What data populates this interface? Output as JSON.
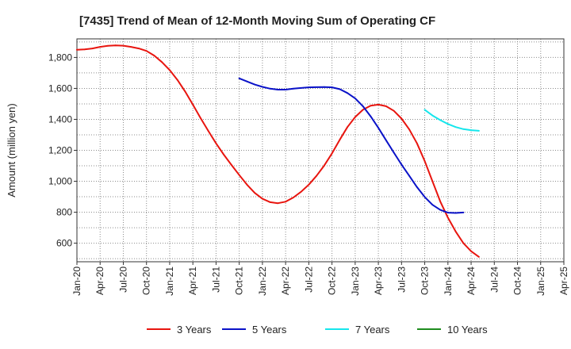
{
  "chart_data": {
    "type": "line",
    "title": "[7435]  Trend of Mean of 12-Month Moving Sum of Operating CF",
    "xlabel": "",
    "ylabel": "Amount (million yen)",
    "ylim": [
      480,
      1920
    ],
    "yticks": [
      600,
      800,
      1000,
      1200,
      1400,
      1600,
      1800
    ],
    "ytick_labels": [
      "600",
      "800",
      "1,000",
      "1,200",
      "1,400",
      "1,600",
      "1,800"
    ],
    "xlim": [
      "Jan-20",
      "Apr-25"
    ],
    "xtick_labels": [
      "Jan-20",
      "Apr-20",
      "Jul-20",
      "Oct-20",
      "Jan-21",
      "Apr-21",
      "Jul-21",
      "Oct-21",
      "Jan-22",
      "Apr-22",
      "Jul-22",
      "Oct-22",
      "Jan-23",
      "Apr-23",
      "Jul-23",
      "Oct-23",
      "Jan-24",
      "Apr-24",
      "Jul-24",
      "Oct-24",
      "Jan-25",
      "Apr-25"
    ],
    "grid": true,
    "legend_position": "bottom",
    "series": [
      {
        "name": "3 Years",
        "color": "#e8150f",
        "start": "Jan-20",
        "values": [
          1850,
          1852,
          1858,
          1868,
          1875,
          1878,
          1876,
          1868,
          1858,
          1842,
          1812,
          1770,
          1718,
          1655,
          1580,
          1495,
          1408,
          1325,
          1245,
          1172,
          1105,
          1040,
          978,
          925,
          887,
          865,
          858,
          868,
          895,
          932,
          978,
          1035,
          1102,
          1180,
          1268,
          1350,
          1415,
          1462,
          1488,
          1495,
          1485,
          1455,
          1405,
          1335,
          1245,
          1130,
          1000,
          870,
          765,
          675,
          600,
          548,
          512
        ]
      },
      {
        "name": "5 Years",
        "color": "#0a12c8",
        "start": "Oct-21",
        "values": [
          1665,
          1645,
          1625,
          1610,
          1598,
          1592,
          1592,
          1598,
          1603,
          1607,
          1608,
          1609,
          1607,
          1595,
          1570,
          1535,
          1485,
          1420,
          1345,
          1265,
          1185,
          1108,
          1035,
          962,
          898,
          848,
          815,
          797,
          795,
          798
        ]
      },
      {
        "name": "7 Years",
        "color": "#16e6ec",
        "start": "Oct-23",
        "values": [
          1462,
          1425,
          1395,
          1370,
          1350,
          1337,
          1330,
          1326
        ]
      },
      {
        "name": "10 Years",
        "color": "#1e8c1e",
        "start": "Apr-24",
        "values": []
      }
    ]
  }
}
